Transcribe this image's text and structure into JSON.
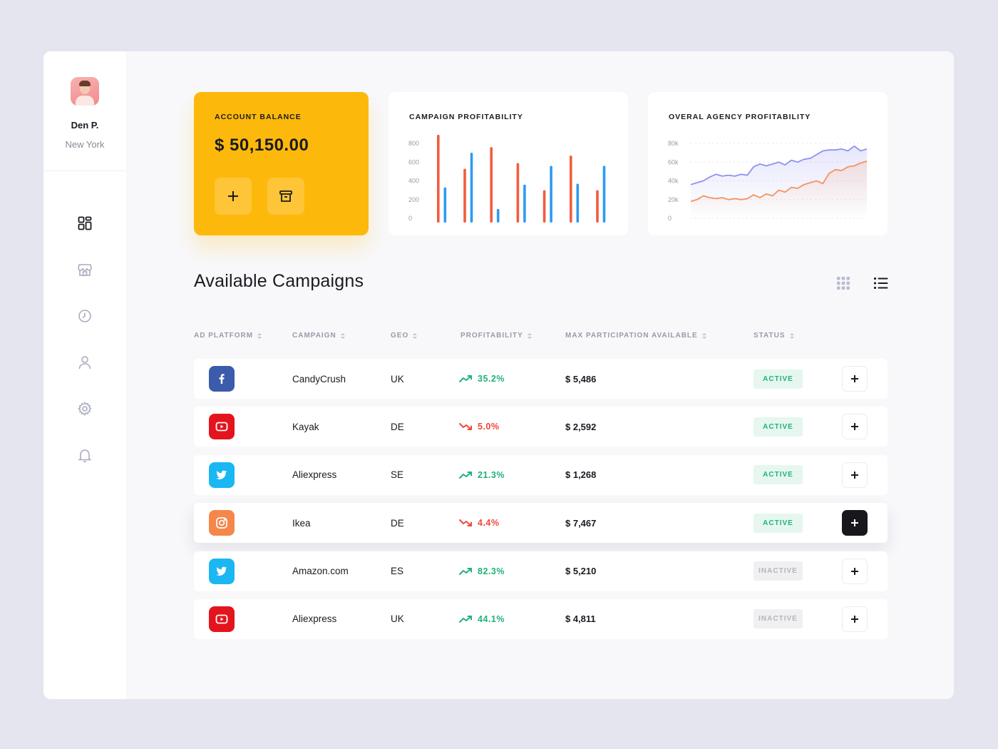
{
  "profile": {
    "name": "Den P.",
    "city": "New York"
  },
  "nav": [
    {
      "icon": "dashboard-icon"
    },
    {
      "icon": "store-icon"
    },
    {
      "icon": "clock-icon"
    },
    {
      "icon": "user-icon"
    },
    {
      "icon": "settings-icon"
    },
    {
      "icon": "bell-icon"
    }
  ],
  "balance": {
    "title": "ACCOUNT BALANCE",
    "amount": "$ 50,150.00"
  },
  "campaign_chart": {
    "title": "CAMPAIGN PROFITABILITY",
    "y_ticks": [
      "800",
      "600",
      "400",
      "200",
      "0"
    ]
  },
  "agency_chart": {
    "title": "OVERAL AGENCY PROFITABILITY",
    "y_ticks": [
      "80k",
      "60k",
      "40k",
      "20k",
      "0"
    ]
  },
  "chart_data": [
    {
      "type": "bar",
      "title": "CAMPAIGN PROFITABILITY",
      "ylim": [
        0,
        800
      ],
      "y_ticks": [
        800,
        600,
        400,
        200,
        0
      ],
      "series": [
        {
          "color": "#f25c3c",
          "values": [
            900,
            530,
            760,
            590,
            300,
            670,
            300
          ]
        },
        {
          "color": "#2e9bef",
          "values": [
            330,
            700,
            100,
            360,
            560,
            370,
            560
          ]
        }
      ]
    },
    {
      "type": "area",
      "title": "OVERAL AGENCY PROFITABILITY",
      "ylim": [
        0,
        80000
      ],
      "y_ticks": [
        "80k",
        "60k",
        "40k",
        "20k",
        "0"
      ],
      "series": [
        {
          "color": "#8f92f0",
          "values": [
            36000,
            38000,
            40000,
            44000,
            47000,
            45000,
            46000,
            45000,
            47000,
            46000,
            55000,
            58000,
            56000,
            58000,
            60000,
            57000,
            62000,
            60000,
            63000,
            64000,
            68000,
            72000,
            73000,
            73000,
            74000,
            72000,
            77000,
            72000,
            74000
          ]
        },
        {
          "color": "#f4935f",
          "values": [
            18000,
            20000,
            24000,
            22000,
            21000,
            22000,
            20000,
            21000,
            20000,
            21000,
            25000,
            22000,
            26000,
            24000,
            30000,
            28000,
            33000,
            32000,
            36000,
            38000,
            40000,
            37000,
            48000,
            52000,
            51000,
            55000,
            56000,
            59000,
            61000
          ]
        }
      ]
    }
  ],
  "section": {
    "title": "Available Campaigns"
  },
  "table": {
    "headers": {
      "platform": "AD PLATFORM",
      "campaign": "CAMPAIGN",
      "geo": "GEO",
      "profitability": "PROFITABILITY",
      "max": "MAX PARTICIPATION AVAILABLE",
      "status": "STATUS"
    },
    "rows": [
      {
        "platform": "facebook",
        "platform_color": "#3b5bab",
        "campaign": "CandyCrush",
        "geo": "UK",
        "trend": "up",
        "profit": "35.2%",
        "max": "$ 5,486",
        "status": "ACTIVE",
        "status_type": "active",
        "highlight": false
      },
      {
        "platform": "youtube",
        "platform_color": "#e3141d",
        "campaign": "Kayak",
        "geo": "DE",
        "trend": "down",
        "profit": "5.0%",
        "max": "$ 2,592",
        "status": "ACTIVE",
        "status_type": "active",
        "highlight": false
      },
      {
        "platform": "twitter",
        "platform_color": "#1ab7f2",
        "campaign": "Aliexpress",
        "geo": "SE",
        "trend": "up",
        "profit": "21.3%",
        "max": "$ 1,268",
        "status": "ACTIVE",
        "status_type": "active",
        "highlight": false
      },
      {
        "platform": "instagram",
        "platform_color": "#f5874a",
        "campaign": "Ikea",
        "geo": "DE",
        "trend": "down",
        "profit": "4.4%",
        "max": "$ 7,467",
        "status": "ACTIVE",
        "status_type": "active",
        "highlight": true
      },
      {
        "platform": "twitter",
        "platform_color": "#1ab7f2",
        "campaign": "Amazon.com",
        "geo": "ES",
        "trend": "up",
        "profit": "82.3%",
        "max": "$ 5,210",
        "status": "INACTIVE",
        "status_type": "inactive",
        "highlight": false
      },
      {
        "platform": "youtube",
        "platform_color": "#e3141d",
        "campaign": "Aliexpress",
        "geo": "UK",
        "trend": "up",
        "profit": "44.1%",
        "max": "$ 4,811",
        "status": "INACTIVE",
        "status_type": "inactive",
        "highlight": false
      }
    ]
  },
  "colors": {
    "accent": "#fdb90b",
    "up": "#20b277",
    "down": "#f2453a"
  }
}
